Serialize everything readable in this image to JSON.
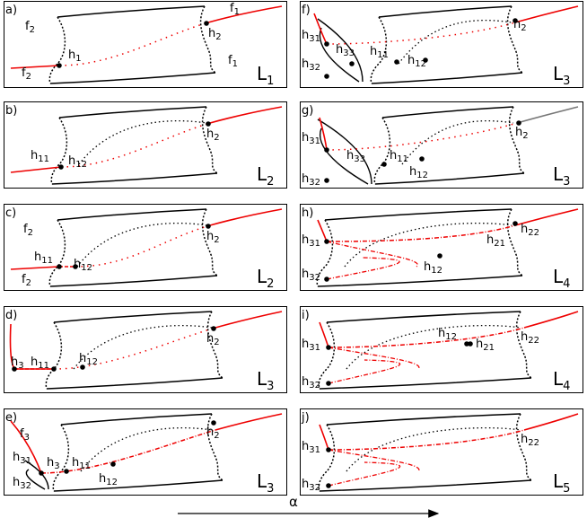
{
  "panels": [
    {
      "letter": "a)",
      "level": {
        "text": "L",
        "sub": "1"
      },
      "labels": [
        {
          "text": "f",
          "sub": "2"
        },
        {
          "text": "f",
          "sub": "1"
        },
        {
          "text": "h",
          "sub": "2"
        },
        {
          "text": "h",
          "sub": "1"
        },
        {
          "text": "f",
          "sub": "2"
        },
        {
          "text": "f",
          "sub": "1"
        }
      ]
    },
    {
      "letter": "b)",
      "level": {
        "text": "L",
        "sub": "2"
      },
      "labels": [
        {
          "text": "h",
          "sub": "11"
        },
        {
          "text": "h",
          "sub": "12"
        },
        {
          "text": "h",
          "sub": "2"
        }
      ]
    },
    {
      "letter": "c)",
      "level": {
        "text": "L",
        "sub": "2"
      },
      "labels": [
        {
          "text": "f",
          "sub": "2"
        },
        {
          "text": "h",
          "sub": "11"
        },
        {
          "text": "h",
          "sub": "12"
        },
        {
          "text": "h",
          "sub": "2"
        },
        {
          "text": "f",
          "sub": "2"
        }
      ]
    },
    {
      "letter": "d)",
      "level": {
        "text": "L",
        "sub": "3"
      },
      "labels": [
        {
          "text": "h",
          "sub": "3"
        },
        {
          "text": "h",
          "sub": "11"
        },
        {
          "text": "h",
          "sub": "12"
        },
        {
          "text": "h",
          "sub": "2"
        }
      ]
    },
    {
      "letter": "e)",
      "level": {
        "text": "L",
        "sub": "3"
      },
      "labels": [
        {
          "text": "f",
          "sub": "3"
        },
        {
          "text": "h",
          "sub": "31"
        },
        {
          "text": "h",
          "sub": "32"
        },
        {
          "text": "h",
          "sub": "3"
        },
        {
          "text": "h",
          "sub": "11"
        },
        {
          "text": "h",
          "sub": "12"
        },
        {
          "text": "h",
          "sub": "2"
        }
      ]
    },
    {
      "letter": "f)",
      "level": {
        "text": "L",
        "sub": "3"
      },
      "labels": [
        {
          "text": "h",
          "sub": "31"
        },
        {
          "text": "h",
          "sub": "33"
        },
        {
          "text": "h",
          "sub": "32"
        },
        {
          "text": "h",
          "sub": "11"
        },
        {
          "text": "h",
          "sub": "12"
        },
        {
          "text": "h",
          "sub": "2"
        }
      ]
    },
    {
      "letter": "g)",
      "level": {
        "text": "L",
        "sub": "3"
      },
      "labels": [
        {
          "text": "h",
          "sub": "31"
        },
        {
          "text": "h",
          "sub": "33"
        },
        {
          "text": "h",
          "sub": "32"
        },
        {
          "text": "h",
          "sub": "11"
        },
        {
          "text": "h",
          "sub": "12"
        },
        {
          "text": "h",
          "sub": "2"
        }
      ]
    },
    {
      "letter": "h)",
      "level": {
        "text": "L",
        "sub": "4"
      },
      "labels": [
        {
          "text": "h",
          "sub": "31"
        },
        {
          "text": "h",
          "sub": "32"
        },
        {
          "text": "h",
          "sub": "12"
        },
        {
          "text": "h",
          "sub": "21"
        },
        {
          "text": "h",
          "sub": "22"
        }
      ]
    },
    {
      "letter": "i)",
      "level": {
        "text": "L",
        "sub": "4"
      },
      "labels": [
        {
          "text": "h",
          "sub": "31"
        },
        {
          "text": "h",
          "sub": "32"
        },
        {
          "text": "h",
          "sub": "12"
        },
        {
          "text": "h",
          "sub": "21"
        },
        {
          "text": "h",
          "sub": "22"
        }
      ]
    },
    {
      "letter": "j)",
      "level": {
        "text": "L",
        "sub": "5"
      },
      "labels": [
        {
          "text": "h",
          "sub": "31"
        },
        {
          "text": "h",
          "sub": "32"
        },
        {
          "text": "h",
          "sub": "22"
        }
      ]
    }
  ],
  "axis_label": "α"
}
